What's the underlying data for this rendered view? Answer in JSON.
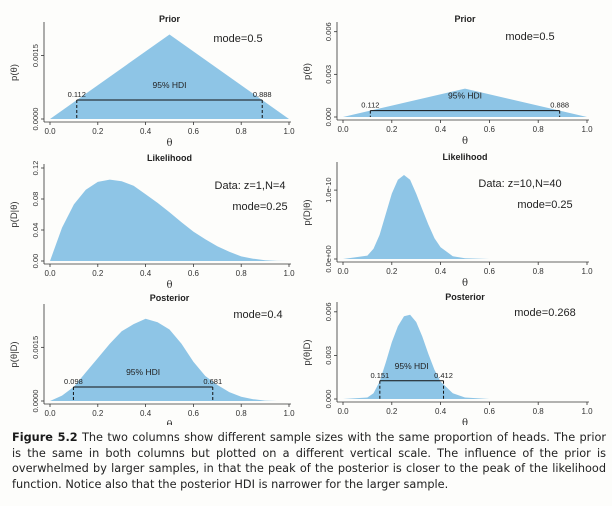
{
  "caption": {
    "label": "Figure 5.2",
    "text": "The two columns show different sample sizes with the same proportion of heads. The prior is the same in both columns but plotted on a different vertical scale. The influence of the prior is overwhelmed by larger samples, in that the peak of the posterior is closer to the peak of the likelihood function. Notice also that the posterior HDI is narrower for the larger sample."
  },
  "colors": {
    "fill": "#8ec5e6",
    "axis": "#333333"
  },
  "chart_data": [
    {
      "id": "prior-left",
      "type": "area",
      "title": "Prior",
      "xlabel": "θ",
      "ylabel": "p(θ)",
      "xlim": [
        0,
        1
      ],
      "ylim": [
        0,
        0.0022
      ],
      "xticks": [
        "0.0",
        "0.2",
        "0.4",
        "0.6",
        "0.8",
        "1.0"
      ],
      "yticks": [
        {
          "v": 0,
          "label": "0.0000"
        },
        {
          "v": 0.0015,
          "label": "0.0015"
        }
      ],
      "annotations": [
        "mode=0.5"
      ],
      "hdi": {
        "label": "95% HDI",
        "lo": 0.112,
        "hi": 0.888,
        "lo_label": "0.112",
        "hi_label": "0.888"
      },
      "x": [
        0,
        0.5,
        1
      ],
      "y": [
        0,
        0.002,
        0
      ]
    },
    {
      "id": "prior-right",
      "type": "area",
      "title": "Prior",
      "xlabel": "θ",
      "ylabel": "p(θ)",
      "xlim": [
        0,
        1
      ],
      "ylim": [
        0,
        0.0064
      ],
      "xticks": [
        "0.0",
        "0.2",
        "0.4",
        "0.6",
        "0.8",
        "1.0"
      ],
      "yticks": [
        {
          "v": 0,
          "label": "0.000"
        },
        {
          "v": 0.003,
          "label": "0.003"
        },
        {
          "v": 0.006,
          "label": "0.006"
        }
      ],
      "annotations": [
        "mode=0.5"
      ],
      "hdi": {
        "label": "95% HDI",
        "lo": 0.112,
        "hi": 0.888,
        "lo_label": "0.112",
        "hi_label": "0.888"
      },
      "x": [
        0,
        0.5,
        1
      ],
      "y": [
        0,
        0.002,
        0
      ]
    },
    {
      "id": "likelihood-left",
      "type": "area",
      "title": "Likelihood",
      "xlabel": "θ",
      "ylabel": "p(D|θ)",
      "xlim": [
        0,
        1
      ],
      "ylim": [
        0,
        0.12
      ],
      "xticks": [
        "0.0",
        "0.2",
        "0.4",
        "0.6",
        "0.8",
        "1.0"
      ],
      "yticks": [
        {
          "v": 0,
          "label": "0.00"
        },
        {
          "v": 0.04,
          "label": "0.04"
        },
        {
          "v": 0.08,
          "label": "0.08"
        },
        {
          "v": 0.12,
          "label": "0.12"
        }
      ],
      "annotations": [
        "Data: z=1,N=4",
        "mode=0.25"
      ],
      "hdi": null,
      "x": [
        0,
        0.05,
        0.1,
        0.15,
        0.2,
        0.25,
        0.3,
        0.35,
        0.4,
        0.45,
        0.5,
        0.55,
        0.6,
        0.65,
        0.7,
        0.75,
        0.8,
        0.85,
        0.9,
        0.95,
        1
      ],
      "y": [
        0,
        0.043,
        0.073,
        0.092,
        0.102,
        0.105,
        0.103,
        0.097,
        0.086,
        0.075,
        0.063,
        0.05,
        0.038,
        0.028,
        0.019,
        0.012,
        0.006,
        0.003,
        0.001,
        0.0001,
        0
      ]
    },
    {
      "id": "likelihood-right",
      "type": "area",
      "title": "Likelihood",
      "xlabel": "θ",
      "ylabel": "p(D|θ)",
      "xlim": [
        0,
        1
      ],
      "ylim": [
        0,
        1.35e-10
      ],
      "xticks": [
        "0.0",
        "0.2",
        "0.4",
        "0.6",
        "0.8",
        "1.0"
      ],
      "yticks": [
        {
          "v": 0,
          "label": "0.0e+00"
        },
        {
          "v": 1e-10,
          "label": "1.0e-10"
        }
      ],
      "annotations": [
        "Data: z=10,N=40",
        "mode=0.25"
      ],
      "hdi": null,
      "x": [
        0,
        0.1,
        0.125,
        0.15,
        0.175,
        0.2,
        0.225,
        0.25,
        0.275,
        0.3,
        0.325,
        0.35,
        0.375,
        0.4,
        0.45,
        0.5,
        0.6,
        1
      ],
      "y": [
        0,
        5e-12,
        1.5e-11,
        3.5e-11,
        6.5e-11,
        9.5e-11,
        1.15e-10,
        1.22e-10,
        1.15e-10,
        9.5e-11,
        7.2e-11,
        5e-11,
        3e-11,
        1.7e-11,
        4e-12,
        1e-12,
        0,
        0
      ]
    },
    {
      "id": "posterior-left",
      "type": "area",
      "title": "Posterior",
      "xlabel": "θ",
      "ylabel": "p(θ|D)",
      "xlim": [
        0,
        1
      ],
      "ylim": [
        0,
        0.0026
      ],
      "xticks": [
        "0.0",
        "0.2",
        "0.4",
        "0.6",
        "0.8",
        "1.0"
      ],
      "yticks": [
        {
          "v": 0,
          "label": "0.0000"
        },
        {
          "v": 0.0015,
          "label": "0.0015"
        }
      ],
      "annotations": [
        "mode=0.4"
      ],
      "hdi": {
        "label": "95% HDI",
        "lo": 0.098,
        "hi": 0.681,
        "lo_label": "0.098",
        "hi_label": "0.681"
      },
      "x": [
        0,
        0.05,
        0.1,
        0.15,
        0.2,
        0.25,
        0.3,
        0.35,
        0.4,
        0.45,
        0.5,
        0.55,
        0.6,
        0.65,
        0.7,
        0.75,
        0.8,
        0.85,
        0.9,
        0.95,
        1
      ],
      "y": [
        0,
        0.00015,
        0.0004,
        0.0008,
        0.0012,
        0.0016,
        0.00195,
        0.00215,
        0.0023,
        0.0022,
        0.002,
        0.0016,
        0.0011,
        0.0007,
        0.00045,
        0.00025,
        0.00012,
        5e-05,
        1e-05,
        0,
        0
      ]
    },
    {
      "id": "posterior-right",
      "type": "area",
      "title": "Posterior",
      "xlabel": "θ",
      "ylabel": "p(θ|D)",
      "xlim": [
        0,
        1
      ],
      "ylim": [
        0,
        0.0064
      ],
      "xticks": [
        "0.0",
        "0.2",
        "0.4",
        "0.6",
        "0.8",
        "1.0"
      ],
      "yticks": [
        {
          "v": 0,
          "label": "0.000"
        },
        {
          "v": 0.003,
          "label": "0.003"
        },
        {
          "v": 0.006,
          "label": "0.006"
        }
      ],
      "annotations": [
        "mode=0.268"
      ],
      "hdi": {
        "label": "95% HDI",
        "lo": 0.151,
        "hi": 0.412,
        "lo_label": "0.151",
        "hi_label": "0.412"
      },
      "x": [
        0,
        0.1,
        0.125,
        0.15,
        0.175,
        0.2,
        0.225,
        0.25,
        0.275,
        0.3,
        0.325,
        0.35,
        0.375,
        0.4,
        0.45,
        0.5,
        0.6,
        1
      ],
      "y": [
        0,
        0.0001,
        0.0004,
        0.0012,
        0.0025,
        0.0039,
        0.005,
        0.0057,
        0.0058,
        0.0053,
        0.0043,
        0.0031,
        0.002,
        0.0012,
        0.0004,
        0.0001,
        0,
        0
      ]
    }
  ]
}
